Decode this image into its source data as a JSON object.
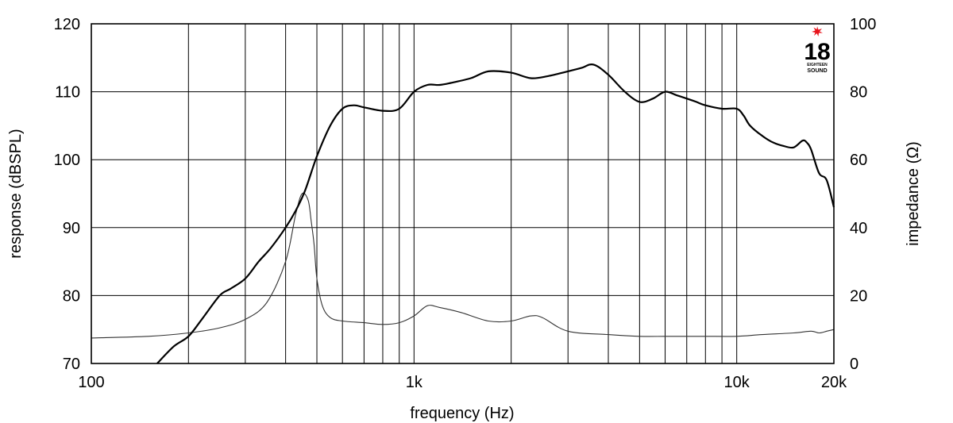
{
  "logo": {
    "number": "18",
    "line1": "EIGHTEEN",
    "line2": "SOUND",
    "star_color": "#e8141c"
  },
  "chart_data": {
    "type": "line",
    "xlabel": "frequency (Hz)",
    "ylabel_left": "response (dBSPL)",
    "ylabel_right": "impedance (Ω)",
    "x_scale": "log",
    "xlim": [
      100,
      20000
    ],
    "ylim_left": [
      70,
      120
    ],
    "ylim_right": [
      0,
      100
    ],
    "grid": true,
    "x_ticks": [
      {
        "value": 100,
        "label": "100"
      },
      {
        "value": 1000,
        "label": "1k"
      },
      {
        "value": 10000,
        "label": "10k"
      },
      {
        "value": 20000,
        "label": "20k"
      }
    ],
    "x_minor_gridlines": [
      200,
      300,
      400,
      500,
      600,
      700,
      800,
      900,
      2000,
      3000,
      4000,
      5000,
      6000,
      7000,
      8000,
      9000
    ],
    "y_ticks_left": [
      {
        "value": 70,
        "label": "70"
      },
      {
        "value": 80,
        "label": "80"
      },
      {
        "value": 90,
        "label": "90"
      },
      {
        "value": 100,
        "label": "100"
      },
      {
        "value": 110,
        "label": "110"
      },
      {
        "value": 120,
        "label": "120"
      }
    ],
    "y_ticks_right": [
      {
        "value": 0,
        "label": "0"
      },
      {
        "value": 20,
        "label": "20"
      },
      {
        "value": 40,
        "label": "40"
      },
      {
        "value": 60,
        "label": "60"
      },
      {
        "value": 80,
        "label": "80"
      },
      {
        "value": 100,
        "label": "100"
      }
    ],
    "series": [
      {
        "axis": "left",
        "x": [
          160,
          180,
          200,
          220,
          250,
          270,
          300,
          330,
          360,
          400,
          430,
          460,
          500,
          550,
          600,
          650,
          700,
          800,
          900,
          1000,
          1100,
          1200,
          1300,
          1500,
          1700,
          2000,
          2300,
          2600,
          3000,
          3300,
          3600,
          4000,
          4500,
          5000,
          5500,
          6000,
          6500,
          7000,
          7500,
          8000,
          9000,
          10000,
          10500,
          11000,
          12000,
          13000,
          14000,
          15000,
          16000,
          16500,
          17000,
          18000,
          19000,
          20000
        ],
        "y": [
          70,
          72.5,
          74,
          76.5,
          80,
          81,
          82.5,
          85,
          87,
          90,
          92.5,
          95.5,
          100.5,
          105,
          107.5,
          108,
          107.7,
          107.2,
          107.5,
          110,
          111,
          111,
          111.3,
          112,
          113,
          112.8,
          112,
          112.3,
          113,
          113.5,
          114,
          112.5,
          110,
          108.5,
          109,
          110,
          109.5,
          109,
          108.5,
          108,
          107.5,
          107.5,
          106.5,
          105,
          103.5,
          102.5,
          102,
          101.8,
          102.8,
          102.5,
          101.5,
          98,
          97,
          93
        ]
      },
      {
        "axis": "right",
        "x": [
          100,
          150,
          200,
          250,
          300,
          350,
          400,
          430,
          450,
          470,
          480,
          490,
          500,
          520,
          550,
          600,
          700,
          800,
          900,
          1000,
          1100,
          1200,
          1400,
          1700,
          2000,
          2300,
          2500,
          3000,
          4000,
          5000,
          6000,
          7000,
          8000,
          10000,
          12000,
          15000,
          17000,
          18000,
          19000,
          20000
        ],
        "y": [
          7.5,
          8,
          9,
          10.5,
          13,
          18,
          30,
          44,
          50,
          48,
          42,
          35,
          25,
          17,
          13.5,
          12.5,
          12,
          11.5,
          12,
          14,
          17,
          16.5,
          15,
          12.5,
          12.5,
          14,
          13.5,
          9.5,
          8.5,
          8,
          8,
          8,
          8,
          8,
          8.5,
          9,
          9.5,
          9,
          9.5,
          10
        ]
      }
    ]
  }
}
